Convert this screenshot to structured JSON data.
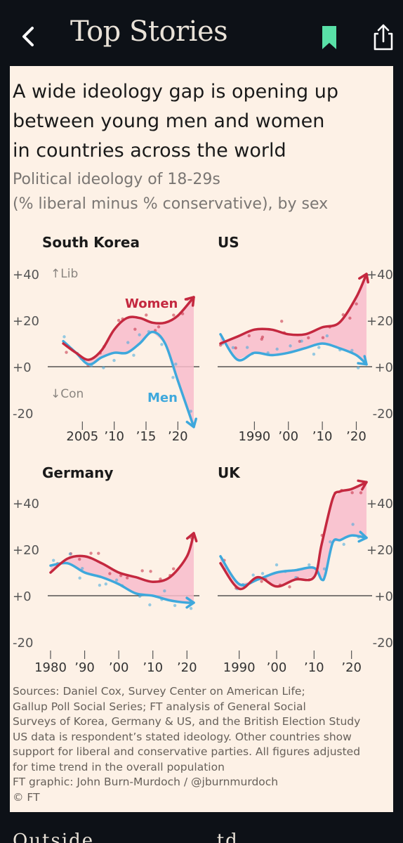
{
  "header": {
    "title": "Top Stories",
    "accent_color": "#59e0a7"
  },
  "article": {
    "headline_lines": [
      "A wide ideology gap is opening up",
      "between young men and women",
      "in countries across the world"
    ],
    "subtitle_lines": [
      "Political ideology of 18-29s",
      "(% liberal minus % conservative), by sex"
    ],
    "sources_lines": [
      "Sources: Daniel Cox, Survey Center on American Life;",
      "Gallup Poll Social Series; FT analysis of General Social",
      "Surveys of Korea, Germany & US, and the British Election Study",
      "US data is respondent’s stated ideology. Other countries show",
      "support for liberal and conservative parties. All figures adjusted",
      "for time trend in the overall population",
      "FT graphic: John Burn-Murdoch / @jburnmurdoch",
      "© FT"
    ]
  },
  "annotations": {
    "lib": "↑Lib",
    "con": "↓Con",
    "women": "Women",
    "men": "Men"
  },
  "colors": {
    "women": "#c4283f",
    "men": "#3ea8dc",
    "gap_fill": "#f8bccb",
    "background": "#fdf1e6"
  },
  "chart_data": [
    {
      "type": "line",
      "title": "South Korea",
      "y_ticks": [
        "+40",
        "+20",
        "+0",
        "-20"
      ],
      "ylim": [
        -20,
        40
      ],
      "x_ticks": [
        "2005",
        "’10",
        "’15",
        "’20"
      ],
      "x_tick_values": [
        2005,
        2010,
        2015,
        2020
      ],
      "xlim": [
        2000,
        2022.5
      ],
      "series": [
        {
          "name": "Women",
          "x": [
            2002,
            2004,
            2006,
            2008,
            2010,
            2012,
            2014,
            2016,
            2018,
            2020,
            2022.5
          ],
          "y": [
            10,
            6,
            3,
            7,
            16,
            21,
            21,
            19,
            19,
            22,
            30
          ]
        },
        {
          "name": "Men",
          "x": [
            2002,
            2004,
            2006,
            2008,
            2010,
            2012,
            2014,
            2016,
            2018,
            2020,
            2022.5
          ],
          "y": [
            11,
            6,
            1,
            4,
            6,
            6,
            10,
            15,
            10,
            -6,
            -26
          ]
        }
      ]
    },
    {
      "type": "line",
      "title": "US",
      "y_ticks": [
        "+40",
        "+20",
        "+0",
        "-20"
      ],
      "ylim": [
        -20,
        40
      ],
      "x_ticks": [
        "1990",
        "’00",
        "’10",
        "’20"
      ],
      "x_tick_values": [
        1990,
        2000,
        2010,
        2020
      ],
      "xlim": [
        1980,
        2023
      ],
      "series": [
        {
          "name": "Women",
          "x": [
            1980,
            1985,
            1990,
            1995,
            2000,
            2005,
            2010,
            2015,
            2020,
            2023
          ],
          "y": [
            10,
            13,
            16,
            16,
            14,
            14,
            17,
            19,
            30,
            40
          ]
        },
        {
          "name": "Men",
          "x": [
            1980,
            1985,
            1990,
            1995,
            2000,
            2005,
            2010,
            2015,
            2020,
            2023
          ],
          "y": [
            14,
            3,
            6,
            5,
            6,
            8,
            10,
            8,
            5,
            1
          ]
        }
      ]
    },
    {
      "type": "line",
      "title": "Germany",
      "y_ticks": [
        "+40",
        "+20",
        "+0",
        "-20"
      ],
      "ylim": [
        -20,
        40
      ],
      "x_ticks": [
        "1980",
        "’90",
        "’00",
        "’10",
        "’20"
      ],
      "x_tick_values": [
        1980,
        1990,
        2000,
        2010,
        2020
      ],
      "xlim": [
        1980,
        2022
      ],
      "series": [
        {
          "name": "Women",
          "x": [
            1980,
            1985,
            1990,
            1995,
            2000,
            2005,
            2010,
            2015,
            2020,
            2022
          ],
          "y": [
            10,
            16,
            17,
            14,
            10,
            8,
            6,
            8,
            17,
            27
          ]
        },
        {
          "name": "Men",
          "x": [
            1980,
            1985,
            1990,
            1995,
            2000,
            2005,
            2010,
            2015,
            2020,
            2022
          ],
          "y": [
            13,
            14,
            10,
            8,
            5,
            1,
            0,
            -2,
            -3,
            -3
          ]
        }
      ]
    },
    {
      "type": "line",
      "title": "UK",
      "y_ticks": [
        "+40",
        "+20",
        "+0",
        "-20"
      ],
      "ylim": [
        -20,
        40
      ],
      "x_ticks": [
        "1990",
        "’00",
        "’10",
        "’20"
      ],
      "x_tick_values": [
        1990,
        2000,
        2010,
        2020
      ],
      "xlim": [
        1985,
        2024
      ],
      "series": [
        {
          "name": "Women",
          "x": [
            1985,
            1990,
            1995,
            2000,
            2005,
            2010,
            2012,
            2015,
            2017,
            2020,
            2024
          ],
          "y": [
            14,
            3,
            8,
            4,
            7,
            8,
            22,
            42,
            45,
            46,
            49
          ]
        },
        {
          "name": "Men",
          "x": [
            1985,
            1990,
            1995,
            2000,
            2005,
            2010,
            2012,
            2013,
            2015,
            2017,
            2020,
            2024
          ],
          "y": [
            17,
            5,
            7,
            10,
            11,
            12,
            7,
            9,
            23,
            24,
            26,
            25
          ]
        }
      ]
    }
  ]
}
